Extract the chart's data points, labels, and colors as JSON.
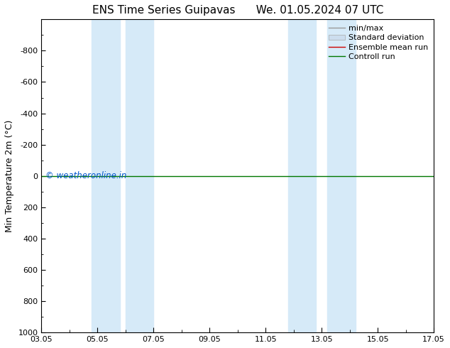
{
  "title": "ENS Time Series Guipavas",
  "title2": "We. 01.05.2024 07 UTC",
  "ylabel": "Min Temperature 2m (°C)",
  "xlim": [
    0,
    14
  ],
  "ylim_bottom": -1000,
  "ylim_top": 1000,
  "yticks": [
    -800,
    -600,
    -400,
    -200,
    0,
    200,
    400,
    600,
    800,
    1000
  ],
  "xtick_labels": [
    "03.05",
    "05.05",
    "07.05",
    "09.05",
    "11.05",
    "13.05",
    "15.05",
    "17.05"
  ],
  "xtick_positions": [
    0,
    2,
    4,
    6,
    8,
    10,
    12,
    14
  ],
  "blue_bands": [
    [
      1.8,
      2.8
    ],
    [
      3.0,
      4.0
    ],
    [
      8.8,
      9.8
    ],
    [
      10.2,
      11.2
    ]
  ],
  "green_line_y": 0,
  "watermark": "© weatheronline.in",
  "watermark_color": "#0055cc",
  "background_color": "#ffffff",
  "band_color": "#d6eaf8",
  "legend_items": [
    {
      "label": "min/max",
      "color": "#999999",
      "lw": 1.0
    },
    {
      "label": "Standard deviation",
      "color": "#ccddee",
      "lw": 8
    },
    {
      "label": "Ensemble mean run",
      "color": "#cc0000",
      "lw": 1.0
    },
    {
      "label": "Controll run",
      "color": "#007700",
      "lw": 1.0
    }
  ],
  "title_fontsize": 11,
  "axis_fontsize": 9,
  "tick_fontsize": 8,
  "legend_fontsize": 8
}
